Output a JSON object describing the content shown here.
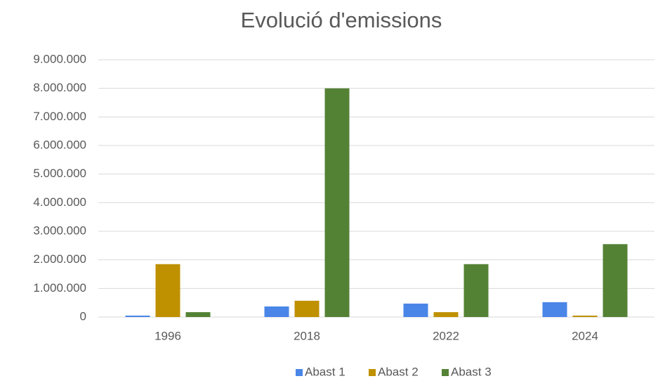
{
  "chart_data": {
    "type": "bar",
    "title": "Evolució d'emissions",
    "categories": [
      "1996",
      "2018",
      "2022",
      "2024"
    ],
    "series": [
      {
        "name": "Abast 1",
        "color": "#4a86e8",
        "values": [
          50000,
          370000,
          470000,
          520000
        ]
      },
      {
        "name": "Abast 2",
        "color": "#bf9000",
        "values": [
          1850000,
          570000,
          170000,
          50000
        ]
      },
      {
        "name": "Abast 3",
        "color": "#548235",
        "values": [
          170000,
          8000000,
          1850000,
          2550000
        ]
      }
    ],
    "ylim": [
      0,
      9000000
    ],
    "yticks": [
      0,
      {
        "value": 1000000,
        "label": "1.000.000"
      },
      {
        "value": 2000000,
        "label": "2.000.000"
      },
      {
        "value": 3000000,
        "label": "3.000.000"
      },
      {
        "value": 4000000,
        "label": "4.000.000"
      },
      {
        "value": 5000000,
        "label": "5.000.000"
      },
      {
        "value": 6000000,
        "label": "6.000.000"
      },
      {
        "value": 7000000,
        "label": "7.000.000"
      },
      {
        "value": 8000000,
        "label": "8.000.000"
      },
      {
        "value": 9000000,
        "label": "9.000.000"
      }
    ],
    "grid": true,
    "legend": "bottom"
  }
}
